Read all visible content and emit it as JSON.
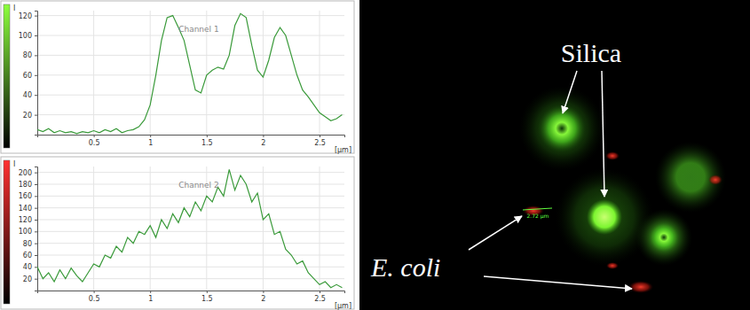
{
  "chart_data": [
    {
      "type": "line",
      "title": "Channel 1",
      "x_label": "[µm]",
      "y_label": "I",
      "color": "#3a9a3a",
      "grid": true,
      "x": [
        0,
        0.05,
        0.1,
        0.15,
        0.2,
        0.25,
        0.3,
        0.35,
        0.4,
        0.45,
        0.5,
        0.55,
        0.6,
        0.65,
        0.7,
        0.75,
        0.8,
        0.85,
        0.9,
        0.95,
        1.0,
        1.05,
        1.1,
        1.15,
        1.2,
        1.25,
        1.3,
        1.35,
        1.4,
        1.45,
        1.5,
        1.55,
        1.6,
        1.65,
        1.7,
        1.75,
        1.8,
        1.85,
        1.9,
        1.95,
        2.0,
        2.05,
        2.1,
        2.15,
        2.2,
        2.25,
        2.3,
        2.35,
        2.4,
        2.45,
        2.5,
        2.55,
        2.6,
        2.65,
        2.7
      ],
      "values": [
        5,
        3,
        6,
        2,
        4,
        2,
        3,
        1,
        3,
        2,
        4,
        2,
        5,
        3,
        6,
        2,
        4,
        5,
        8,
        15,
        30,
        60,
        95,
        118,
        120,
        108,
        95,
        70,
        45,
        42,
        60,
        65,
        68,
        66,
        80,
        110,
        122,
        118,
        90,
        65,
        58,
        75,
        98,
        108,
        100,
        80,
        60,
        45,
        38,
        30,
        22,
        18,
        14,
        16,
        20
      ],
      "xlim": [
        0,
        2.72
      ],
      "xticks": [
        0.5,
        1,
        1.5,
        2,
        2.5
      ],
      "ylim": [
        0,
        125
      ],
      "yticks": [
        20,
        40,
        60,
        80,
        100,
        120
      ]
    },
    {
      "type": "line",
      "title": "Channel 2",
      "x_label": "[µm]",
      "y_label": "I",
      "color": "#3a9a3a",
      "grid": true,
      "x": [
        0,
        0.05,
        0.1,
        0.15,
        0.2,
        0.25,
        0.3,
        0.35,
        0.4,
        0.45,
        0.5,
        0.55,
        0.6,
        0.65,
        0.7,
        0.75,
        0.8,
        0.85,
        0.9,
        0.95,
        1.0,
        1.05,
        1.1,
        1.15,
        1.2,
        1.25,
        1.3,
        1.35,
        1.4,
        1.45,
        1.5,
        1.55,
        1.6,
        1.65,
        1.7,
        1.75,
        1.8,
        1.85,
        1.9,
        1.95,
        2.0,
        2.05,
        2.1,
        2.15,
        2.2,
        2.25,
        2.3,
        2.35,
        2.4,
        2.45,
        2.5,
        2.55,
        2.6,
        2.65,
        2.7
      ],
      "values": [
        40,
        20,
        30,
        15,
        35,
        20,
        38,
        25,
        15,
        30,
        45,
        40,
        60,
        55,
        75,
        65,
        90,
        80,
        100,
        95,
        110,
        90,
        120,
        105,
        130,
        115,
        140,
        125,
        150,
        135,
        160,
        150,
        175,
        160,
        205,
        170,
        195,
        180,
        150,
        165,
        120,
        130,
        95,
        100,
        70,
        60,
        45,
        50,
        30,
        20,
        10,
        15,
        5,
        10,
        5
      ],
      "xlim": [
        0,
        2.72
      ],
      "xticks": [
        0.5,
        1,
        1.5,
        2,
        2.5
      ],
      "ylim": [
        0,
        210
      ],
      "yticks": [
        20,
        40,
        60,
        80,
        100,
        120,
        140,
        160,
        180,
        200
      ]
    }
  ],
  "image": {
    "silica_label": "Silica",
    "ecoli_label": "E. coli",
    "measurement": "2.72 µm"
  }
}
